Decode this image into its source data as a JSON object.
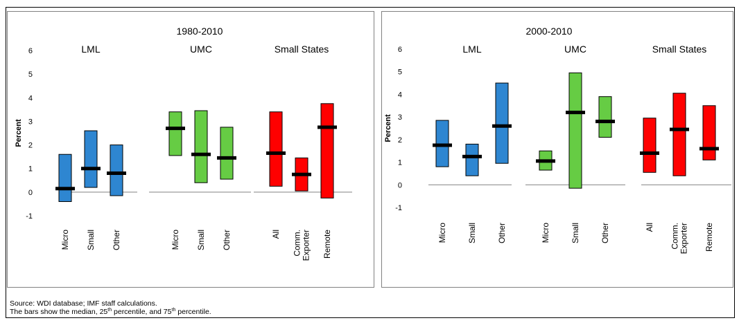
{
  "notes": {
    "source": "Source: WDI database; IMF staff calculations.",
    "bars_prefix": "The bars show the median, 25",
    "sup1": "th",
    "bars_middle": " percentile, and 75",
    "sup2": "th",
    "bars_suffix": " percentile."
  },
  "colors": {
    "blue": "#2E86D1",
    "green": "#66CC44",
    "red": "#FF0000",
    "median": "#000000"
  },
  "chart_data": [
    {
      "type": "box",
      "title": "1980-2010",
      "ylabel": "Percent",
      "ylim": [
        -1,
        6
      ],
      "yticks": [
        "-1",
        "0",
        "1",
        "2",
        "3",
        "4",
        "5",
        "6"
      ],
      "groups": [
        {
          "label": "LML",
          "color": "blue",
          "items": [
            {
              "label": "Micro",
              "p25": -0.4,
              "median": 0.15,
              "p75": 1.6
            },
            {
              "label": "Small",
              "p25": 0.2,
              "median": 1.0,
              "p75": 2.6
            },
            {
              "label": "Other",
              "p25": -0.15,
              "median": 0.8,
              "p75": 2.0
            }
          ]
        },
        {
          "label": "UMC",
          "color": "green",
          "items": [
            {
              "label": "Micro",
              "p25": 1.55,
              "median": 2.7,
              "p75": 3.4
            },
            {
              "label": "Small",
              "p25": 0.4,
              "median": 1.6,
              "p75": 3.45
            },
            {
              "label": "Other",
              "p25": 0.55,
              "median": 1.45,
              "p75": 2.75
            }
          ]
        },
        {
          "label": "Small States",
          "color": "red",
          "items": [
            {
              "label": "All",
              "p25": 0.25,
              "median": 1.65,
              "p75": 3.4
            },
            {
              "label": "Comm. Exporter",
              "lines": [
                "Comm.",
                "Exporter"
              ],
              "p25": 0.05,
              "median": 0.75,
              "p75": 1.45
            },
            {
              "label": "Remote",
              "p25": -0.25,
              "median": 2.75,
              "p75": 3.75
            }
          ]
        }
      ]
    },
    {
      "type": "box",
      "title": "2000-2010",
      "ylabel": "Percent",
      "ylim": [
        -1,
        6
      ],
      "yticks": [
        "-1",
        "0",
        "1",
        "2",
        "3",
        "4",
        "5",
        "6"
      ],
      "groups": [
        {
          "label": "LML",
          "color": "blue",
          "items": [
            {
              "label": "Micro",
              "p25": 0.8,
              "median": 1.75,
              "p75": 2.85
            },
            {
              "label": "Small",
              "p25": 0.4,
              "median": 1.25,
              "p75": 1.8
            },
            {
              "label": "Other",
              "p25": 0.95,
              "median": 2.6,
              "p75": 4.5
            }
          ]
        },
        {
          "label": "UMC",
          "color": "green",
          "items": [
            {
              "label": "Micro",
              "p25": 0.65,
              "median": 1.05,
              "p75": 1.5
            },
            {
              "label": "Small",
              "p25": -0.15,
              "median": 3.2,
              "p75": 4.95
            },
            {
              "label": "Other",
              "p25": 2.1,
              "median": 2.8,
              "p75": 3.9
            }
          ]
        },
        {
          "label": "Small States",
          "color": "red",
          "items": [
            {
              "label": "All",
              "p25": 0.55,
              "median": 1.4,
              "p75": 2.95
            },
            {
              "label": "Comm. Exporter",
              "lines": [
                "Comm.",
                "Exporter"
              ],
              "p25": 0.4,
              "median": 2.45,
              "p75": 4.05
            },
            {
              "label": "Remote",
              "p25": 1.1,
              "median": 1.6,
              "p75": 3.5
            }
          ]
        }
      ]
    }
  ]
}
